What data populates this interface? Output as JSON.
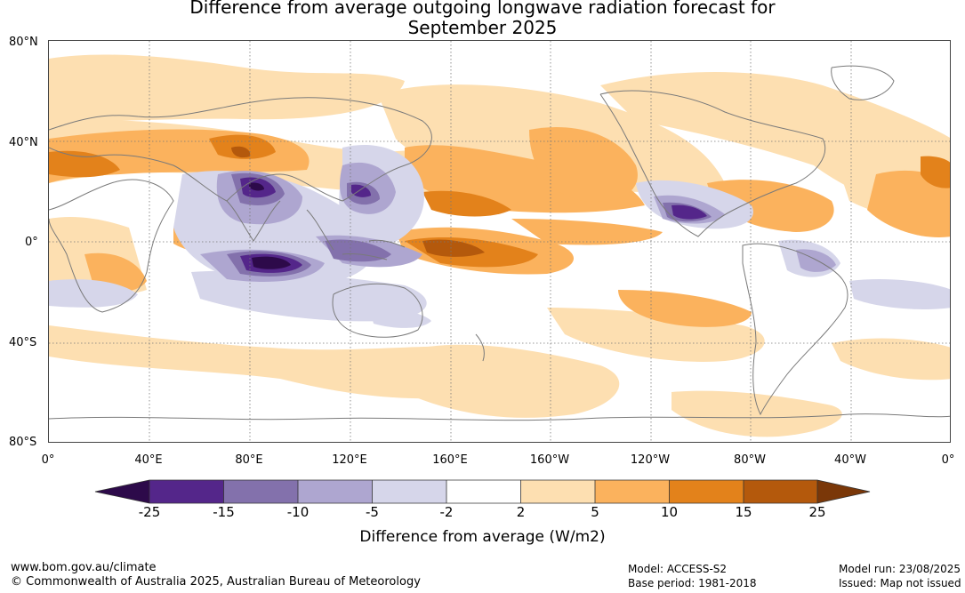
{
  "title": {
    "line1": "Difference from average outgoing longwave radiation forecast for",
    "line2": "September 2025"
  },
  "lat_ticks": [
    "80°N",
    "40°N",
    "0°",
    "40°S",
    "80°S"
  ],
  "lon_ticks": [
    "0°",
    "40°E",
    "80°E",
    "120°E",
    "160°E",
    "160°W",
    "120°W",
    "80°W",
    "40°W",
    "0°"
  ],
  "colorbar": {
    "title": "Difference from average (W/m2)",
    "labels": [
      "-25",
      "-15",
      "-10",
      "-5",
      "-2",
      "2",
      "5",
      "10",
      "15",
      "25"
    ],
    "colors": {
      "lt_-25": "#2d0a4a",
      "-25_-15": "#54268a",
      "-15_-10": "#8371ac",
      "-10_-5": "#aea6d0",
      "-5_-2": "#d6d6ea",
      "-2_2": "#ffffff",
      "2_5": "#fddfb1",
      "5_10": "#fbb25d",
      "10_15": "#e3821b",
      "15_25": "#b4590c",
      "gt_25": "#7a3708"
    }
  },
  "footer": {
    "website": "www.bom.gov.au/climate",
    "copyright": "© Commonwealth of Australia 2025, Australian Bureau of Meteorology",
    "model": "Model: ACCESS-S2",
    "base_period": "Base period: 1981-2018",
    "model_run": "Model run: 23/08/2025",
    "issued": "Issued: Map not issued"
  }
}
